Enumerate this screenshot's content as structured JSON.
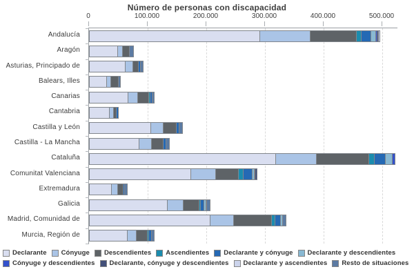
{
  "title": "Número de personas con discapacidad",
  "chart_data": {
    "type": "bar",
    "orientation": "horizontal",
    "stacked": true,
    "title": "Número de personas con discapacidad",
    "xlim": [
      0,
      500000
    ],
    "x_tick_step": 100000,
    "x_tick_labels": [
      "0",
      "100.000",
      "200.000",
      "300.000",
      "400.000",
      "500.000"
    ],
    "grid": "vertical-dashed",
    "legend_position": "bottom",
    "categories": [
      "Andalucía",
      "Aragón",
      "Asturias, Principado de",
      "Balears, Illes",
      "Canarias",
      "Cantabria",
      "Castilla y León",
      "Castilla - La Mancha",
      "Cataluña",
      "Comunitat Valenciana",
      "Extremadura",
      "Galicia",
      "Madrid, Comunidad de",
      "Murcia, Región de"
    ],
    "series": [
      {
        "name": "Declarante",
        "color": "#d9def0",
        "values": [
          290600,
          48200,
          61200,
          29800,
          65900,
          33800,
          104300,
          84700,
          318000,
          172900,
          37600,
          132600,
          205500,
          65100
        ]
      },
      {
        "name": "Cónyuge",
        "color": "#aac4e6",
        "values": [
          86200,
          8600,
          12900,
          7100,
          16100,
          7100,
          21500,
          20800,
          69400,
          42000,
          10900,
          27400,
          40000,
          14900
        ]
      },
      {
        "name": "Descendientes",
        "color": "#5e6367",
        "values": [
          78500,
          11000,
          9400,
          12600,
          19600,
          4700,
          22700,
          20400,
          88700,
          39200,
          9400,
          27400,
          64700,
          18500
        ]
      },
      {
        "name": "Ascendientes",
        "color": "#1b8cae",
        "values": [
          8600,
          0,
          0,
          0,
          2400,
          0,
          0,
          0,
          9800,
          7900,
          0,
          2400,
          5900,
          2700
        ]
      },
      {
        "name": "Declarante y cónyuge",
        "color": "#2569b4",
        "values": [
          16100,
          0,
          3900,
          0,
          3100,
          3100,
          4700,
          4700,
          19200,
          15600,
          2600,
          5900,
          9800,
          5100
        ]
      },
      {
        "name": "Declarante y descendientes",
        "color": "#89b9d3",
        "values": [
          8600,
          0,
          0,
          0,
          0,
          0,
          0,
          0,
          11800,
          3100,
          0,
          3100,
          3100,
          0
        ]
      },
      {
        "name": "Cónyuge y descendientes",
        "color": "#3351cc",
        "values": [
          2400,
          0,
          0,
          0,
          0,
          0,
          0,
          0,
          3200,
          2000,
          0,
          1200,
          0,
          0
        ]
      },
      {
        "name": "Declarante, cónyuge y descendientes",
        "color": "#424f78",
        "values": [
          1200,
          0,
          0,
          0,
          0,
          0,
          0,
          0,
          0,
          1900,
          0,
          0,
          0,
          0
        ]
      },
      {
        "name": "Declarante y ascendientes",
        "color": "#ccd4ec",
        "values": [
          1500,
          0,
          0,
          0,
          0,
          0,
          0,
          0,
          0,
          0,
          0,
          0,
          0,
          0
        ]
      },
      {
        "name": "Resto de situaciones",
        "color": "#5c7ba3",
        "values": [
          0,
          6000,
          3200,
          1000,
          2400,
          0,
          4700,
          4700,
          0,
          0,
          2600,
          4700,
          4700,
          2800
        ]
      }
    ],
    "legend_rows": [
      [
        0,
        1,
        2,
        3,
        4,
        5
      ],
      [
        6,
        7,
        8,
        9
      ]
    ]
  },
  "colors": {
    "axis_line": "#989da2",
    "gridline": "#d9d9d9",
    "bar_border": "#81868c",
    "text": "#3a3a3a"
  }
}
